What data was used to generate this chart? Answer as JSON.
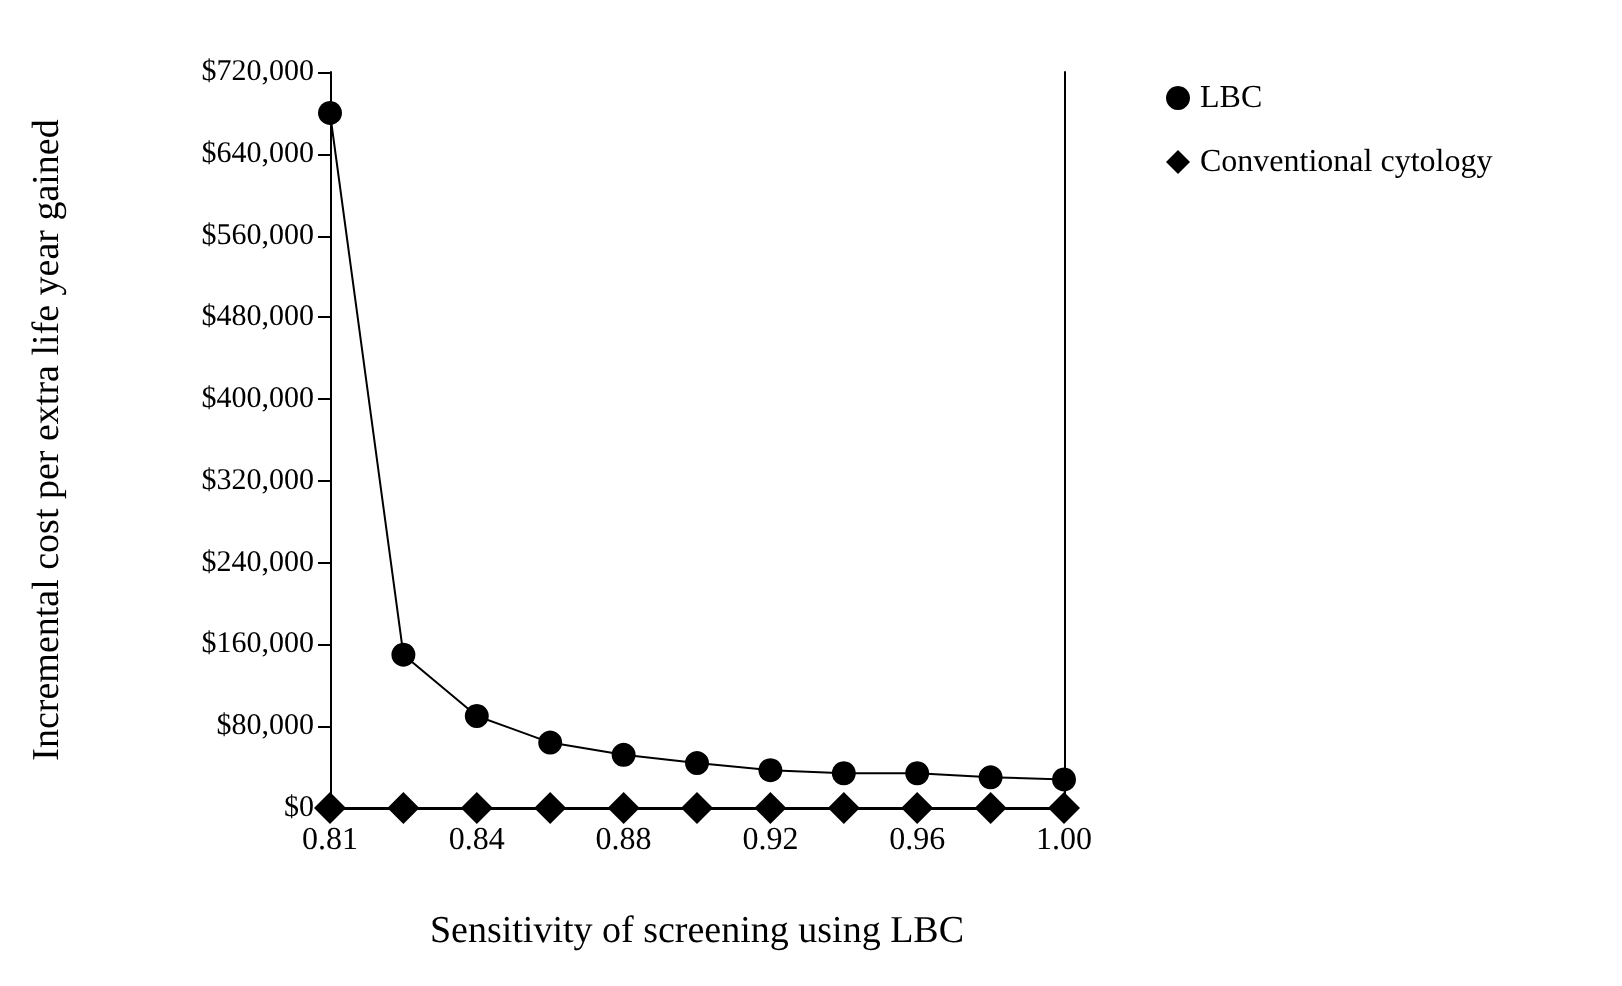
{
  "chart_data": {
    "type": "line",
    "xlabel": "Sensitivity of screening using LBC",
    "ylabel": "Incremental cost per extra life year gained",
    "categories": [
      "0.81",
      null,
      "0.84",
      null,
      "0.88",
      null,
      "0.92",
      null,
      "0.96",
      null,
      "1.00"
    ],
    "series": [
      {
        "name": "LBC",
        "color": "#000000",
        "marker": "circle",
        "values": [
          680000,
          150000,
          90000,
          64000,
          52000,
          44000,
          37000,
          34000,
          34000,
          30000,
          28000
        ]
      },
      {
        "name": "Conventional cytology",
        "color": "#000000",
        "marker": "diamond",
        "values": [
          0,
          0,
          0,
          0,
          0,
          0,
          0,
          0,
          0,
          0,
          0
        ]
      }
    ],
    "ylim": [
      0,
      720000
    ],
    "yticks": [
      {
        "value": 0,
        "label": "$0"
      },
      {
        "value": 80000,
        "label": "$80,000"
      },
      {
        "value": 160000,
        "label": "$160,000"
      },
      {
        "value": 240000,
        "label": "$240,000"
      },
      {
        "value": 320000,
        "label": "$320,000"
      },
      {
        "value": 400000,
        "label": "$400,000"
      },
      {
        "value": 480000,
        "label": "$480,000"
      },
      {
        "value": 560000,
        "label": "$560,000"
      },
      {
        "value": 640000,
        "label": "$640,000"
      },
      {
        "value": 720000,
        "label": "$720,000"
      }
    ],
    "grid": false,
    "legend": "top right",
    "line_style": "solid"
  }
}
